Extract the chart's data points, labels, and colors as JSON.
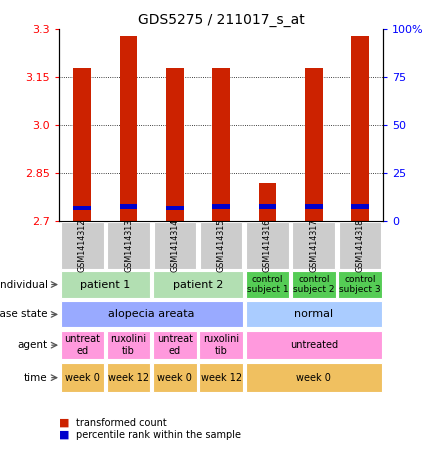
{
  "title": "GDS5275 / 211017_s_at",
  "samples": [
    "GSM1414312",
    "GSM1414313",
    "GSM1414314",
    "GSM1414315",
    "GSM1414316",
    "GSM1414317",
    "GSM1414318"
  ],
  "red_values": [
    3.18,
    3.28,
    3.18,
    3.18,
    2.82,
    3.18,
    3.28
  ],
  "blue_values": [
    2.74,
    2.745,
    2.74,
    2.745,
    2.745,
    2.745,
    2.745
  ],
  "y_min": 2.7,
  "y_max": 3.3,
  "y_ticks": [
    2.7,
    2.85,
    3.0,
    3.15,
    3.3
  ],
  "y2_ticks": [
    0,
    25,
    50,
    75,
    100
  ],
  "y2_labels": [
    "0",
    "25",
    "50",
    "75",
    "100%"
  ],
  "bar_width": 0.38,
  "annotation_rows": [
    {
      "label": "individual",
      "cells": [
        {
          "text": "patient 1",
          "span": 2,
          "color": "#b2dfb2",
          "fontsize": 8
        },
        {
          "text": "patient 2",
          "span": 2,
          "color": "#b2dfb2",
          "fontsize": 8
        },
        {
          "text": "control\nsubject 1",
          "span": 1,
          "color": "#55cc55",
          "fontsize": 6.5
        },
        {
          "text": "control\nsubject 2",
          "span": 1,
          "color": "#55cc55",
          "fontsize": 6.5
        },
        {
          "text": "control\nsubject 3",
          "span": 1,
          "color": "#55cc55",
          "fontsize": 6.5
        }
      ]
    },
    {
      "label": "disease state",
      "cells": [
        {
          "text": "alopecia areata",
          "span": 4,
          "color": "#99aaff",
          "fontsize": 8
        },
        {
          "text": "normal",
          "span": 3,
          "color": "#aaccff",
          "fontsize": 8
        }
      ]
    },
    {
      "label": "agent",
      "cells": [
        {
          "text": "untreat\ned",
          "span": 1,
          "color": "#ff99dd",
          "fontsize": 7
        },
        {
          "text": "ruxolini\ntib",
          "span": 1,
          "color": "#ff99dd",
          "fontsize": 7
        },
        {
          "text": "untreat\ned",
          "span": 1,
          "color": "#ff99dd",
          "fontsize": 7
        },
        {
          "text": "ruxolini\ntib",
          "span": 1,
          "color": "#ff99dd",
          "fontsize": 7
        },
        {
          "text": "untreated",
          "span": 3,
          "color": "#ff99dd",
          "fontsize": 7
        }
      ]
    },
    {
      "label": "time",
      "cells": [
        {
          "text": "week 0",
          "span": 1,
          "color": "#f0c060",
          "fontsize": 7
        },
        {
          "text": "week 12",
          "span": 1,
          "color": "#f0c060",
          "fontsize": 7
        },
        {
          "text": "week 0",
          "span": 1,
          "color": "#f0c060",
          "fontsize": 7
        },
        {
          "text": "week 12",
          "span": 1,
          "color": "#f0c060",
          "fontsize": 7
        },
        {
          "text": "week 0",
          "span": 3,
          "color": "#f0c060",
          "fontsize": 7
        }
      ]
    }
  ],
  "legend_items": [
    {
      "color": "#cc2200",
      "label": "transformed count"
    },
    {
      "color": "#0000cc",
      "label": "percentile rank within the sample"
    }
  ],
  "red_color": "#cc2200",
  "blue_color": "#0000cc",
  "sample_box_color": "#cccccc"
}
